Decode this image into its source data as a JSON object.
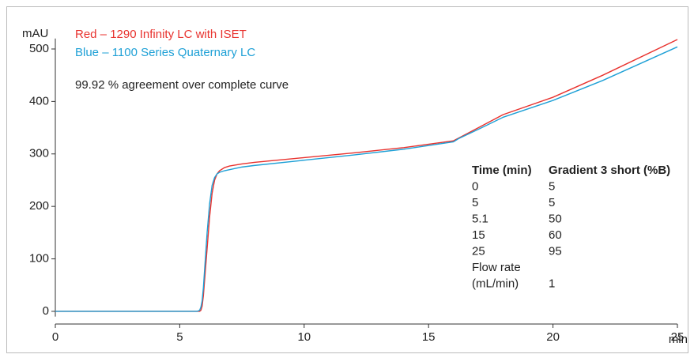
{
  "chart_data": {
    "type": "line",
    "x_label": "min",
    "y_label": "mAU",
    "annotation": "99.92 % agreement over complete curve",
    "x": [
      0,
      5.7,
      5.8,
      5.85,
      5.9,
      5.95,
      6.0,
      6.1,
      6.2,
      6.3,
      6.4,
      6.5,
      6.6,
      6.8,
      7.0,
      7.5,
      8,
      10,
      12,
      14,
      16,
      16.2,
      17,
      18,
      20,
      22,
      25
    ],
    "series": [
      {
        "name": "Red – 1290 Infinity LC with ISET",
        "color": "#e8322e",
        "values": [
          0,
          0,
          0,
          2,
          10,
          30,
          60,
          120,
          180,
          225,
          250,
          262,
          268,
          274,
          277,
          281,
          284,
          293,
          302,
          312,
          325,
          330,
          350,
          375,
          408,
          450,
          518
        ]
      },
      {
        "name": "Blue – 1100 Series Quaternary LC",
        "color": "#1ea0d6",
        "values": [
          0,
          0,
          2,
          8,
          20,
          45,
          80,
          150,
          205,
          240,
          255,
          262,
          265,
          268,
          270,
          275,
          278,
          288,
          298,
          309,
          323,
          329,
          347,
          370,
          402,
          440,
          504
        ]
      }
    ],
    "xlim": [
      0,
      25
    ],
    "xticks": [
      0,
      5,
      10,
      15,
      20,
      25
    ],
    "ylim": [
      -10,
      520
    ],
    "yticks": [
      0,
      100,
      200,
      300,
      400,
      500
    ],
    "table": {
      "header": [
        "Time (min)",
        "Gradient 3 short (%B)"
      ],
      "rows": [
        [
          "0",
          "5"
        ],
        [
          "5",
          "5"
        ],
        [
          "5.1",
          "50"
        ],
        [
          "15",
          "60"
        ],
        [
          "25",
          "95"
        ]
      ],
      "flow_rate": {
        "label": [
          "Flow rate",
          "(mL/min)"
        ],
        "value": "1"
      }
    }
  }
}
